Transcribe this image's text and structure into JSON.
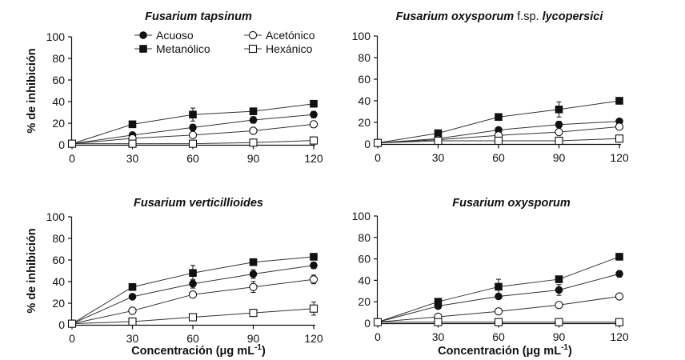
{
  "legend": {
    "entries": [
      {
        "label": "Acuoso",
        "marker": "filled-circle"
      },
      {
        "label": "Metanólico",
        "marker": "filled-square"
      },
      {
        "label": "Acetónico",
        "marker": "open-circle"
      },
      {
        "label": "Hexánico",
        "marker": "open-square"
      }
    ]
  },
  "chart_data": [
    {
      "type": "line",
      "title_italic": "Fusarium tapsinum",
      "title_plain": "",
      "x": [
        0,
        30,
        60,
        90,
        120
      ],
      "xlim": [
        0,
        120
      ],
      "ylim": [
        0,
        100
      ],
      "xticks": [
        "0",
        "30",
        "60",
        "90",
        "120"
      ],
      "yticks": [
        "0",
        "20",
        "40",
        "60",
        "80",
        "100"
      ],
      "ylabel": "% de inhibición",
      "xlabel": "",
      "series": [
        {
          "name": "Acuoso",
          "values": [
            1,
            9,
            16,
            23,
            28
          ],
          "errors": [
            0,
            1,
            3,
            3,
            3
          ]
        },
        {
          "name": "Metanólico",
          "values": [
            1,
            19,
            28,
            31,
            38
          ],
          "errors": [
            0,
            1,
            6,
            2,
            2
          ]
        },
        {
          "name": "Acetónico",
          "values": [
            1,
            6,
            9,
            13,
            19
          ],
          "errors": [
            0,
            1,
            1,
            2,
            3
          ]
        },
        {
          "name": "Hexánico",
          "values": [
            1,
            1,
            1,
            2,
            4
          ],
          "errors": [
            0,
            0,
            0,
            0,
            0
          ]
        }
      ]
    },
    {
      "type": "line",
      "title_italic": "Fusarium oxysporum",
      "title_plain": " f.sp. ",
      "title_italic2": "lycopersici",
      "x": [
        0,
        30,
        60,
        90,
        120
      ],
      "xlim": [
        0,
        120
      ],
      "ylim": [
        0,
        100
      ],
      "xticks": [
        "0",
        "30",
        "60",
        "90",
        "120"
      ],
      "yticks": [
        "0",
        "20",
        "40",
        "60",
        "80",
        "100"
      ],
      "ylabel": "",
      "xlabel": "",
      "series": [
        {
          "name": "Acuoso",
          "values": [
            1,
            5,
            13,
            18,
            21
          ],
          "errors": [
            0,
            1,
            2,
            3,
            2
          ]
        },
        {
          "name": "Metanólico",
          "values": [
            1,
            10,
            25,
            32,
            40
          ],
          "errors": [
            0,
            2,
            2,
            7,
            2
          ]
        },
        {
          "name": "Acetónico",
          "values": [
            1,
            4,
            8,
            11,
            16
          ],
          "errors": [
            0,
            1,
            1,
            2,
            2
          ]
        },
        {
          "name": "Hexánico",
          "values": [
            1,
            3,
            3,
            3,
            5
          ],
          "errors": [
            0,
            0,
            0,
            0,
            0
          ]
        }
      ]
    },
    {
      "type": "line",
      "title_italic": "Fusarium verticillioides",
      "title_plain": "",
      "x": [
        0,
        30,
        60,
        90,
        120
      ],
      "xlim": [
        0,
        120
      ],
      "ylim": [
        0,
        100
      ],
      "xticks": [
        "0",
        "30",
        "60",
        "90",
        "120"
      ],
      "yticks": [
        "0",
        "20",
        "40",
        "60",
        "80",
        "100"
      ],
      "ylabel": "% de inhibición",
      "xlabel": "Concentración (μg mL",
      "xlabel_sup": "-1",
      "xlabel_end": ")",
      "series": [
        {
          "name": "Acuoso",
          "values": [
            1,
            26,
            38,
            47,
            55
          ],
          "errors": [
            0,
            1,
            4,
            4,
            3
          ]
        },
        {
          "name": "Metanólico",
          "values": [
            1,
            35,
            48,
            58,
            63
          ],
          "errors": [
            0,
            1,
            7,
            2,
            2
          ]
        },
        {
          "name": "Acetónico",
          "values": [
            1,
            13,
            28,
            35,
            42
          ],
          "errors": [
            0,
            1,
            2,
            5,
            4
          ]
        },
        {
          "name": "Hexánico",
          "values": [
            1,
            3,
            7,
            11,
            15
          ],
          "errors": [
            0,
            1,
            1,
            2,
            6
          ]
        }
      ]
    },
    {
      "type": "line",
      "title_italic": "Fusarium oxysporum",
      "title_plain": "",
      "x": [
        0,
        30,
        60,
        90,
        120
      ],
      "xlim": [
        0,
        120
      ],
      "ylim": [
        0,
        100
      ],
      "xticks": [
        "0",
        "30",
        "60",
        "90",
        "120"
      ],
      "yticks": [
        "0",
        "20",
        "40",
        "60",
        "80",
        "100"
      ],
      "ylabel": "",
      "xlabel": "Concentración (μg mL",
      "xlabel_sup": "-1",
      "xlabel_end": ")",
      "series": [
        {
          "name": "Acuoso",
          "values": [
            1,
            16,
            25,
            31,
            46
          ],
          "errors": [
            0,
            1,
            2,
            5,
            3
          ]
        },
        {
          "name": "Metanólico",
          "values": [
            1,
            20,
            34,
            41,
            62
          ],
          "errors": [
            0,
            1,
            7,
            2,
            1
          ]
        },
        {
          "name": "Acetónico",
          "values": [
            1,
            6,
            11,
            17,
            25
          ],
          "errors": [
            0,
            1,
            1,
            2,
            1
          ]
        },
        {
          "name": "Hexánico",
          "values": [
            1,
            1,
            1,
            1,
            1
          ],
          "errors": [
            0,
            0,
            0,
            0,
            0
          ]
        }
      ]
    }
  ]
}
